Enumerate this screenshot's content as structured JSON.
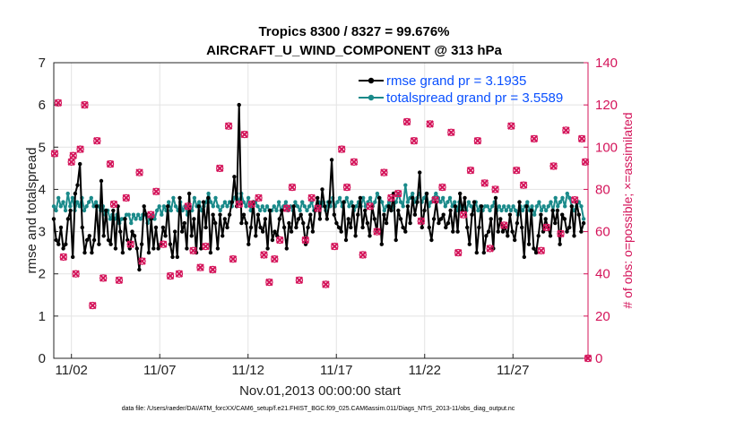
{
  "chart_data": {
    "type": "line",
    "title": "Tropics 8300 / 8327 = 99.676%",
    "subtitle": "AIRCRAFT_U_WIND_COMPONENT @ 313 hPa",
    "xlabel": "Nov.01,2013 00:00:00 start",
    "ylabel": "rmse and totalspread",
    "ylabel_right": "# of obs: o=possible; ×=assimilated",
    "footnote": "data file: /Users/raeder/DAI/ATM_forcXX/CAM6_setup/f.e21.FHIST_BGC.f09_025.CAM6assim.011/Diags_NTrS_2013-11/obs_diag_output.nc",
    "xlim": [
      0,
      30.25
    ],
    "ylim": [
      0,
      7
    ],
    "ylim_right": [
      0,
      140
    ],
    "yticks": [
      "0",
      "1",
      "2",
      "3",
      "4",
      "5",
      "6",
      "7"
    ],
    "yticks_right": [
      "0",
      "20",
      "40",
      "60",
      "80",
      "100",
      "120",
      "140"
    ],
    "xticks": [
      {
        "x": 1,
        "label": "11/02"
      },
      {
        "x": 6,
        "label": "11/07"
      },
      {
        "x": 11,
        "label": "11/12"
      },
      {
        "x": 16,
        "label": "11/17"
      },
      {
        "x": 21,
        "label": "11/22"
      },
      {
        "x": 26,
        "label": "11/27"
      }
    ],
    "grid": true,
    "legend_position": "top-right",
    "series": [
      {
        "name": "rmse grand pr = 3.1935",
        "color": "#000000",
        "axis": "left",
        "values": [
          3.3,
          2.8,
          2.7,
          3.1,
          2.6,
          2.7,
          3.3,
          3.5,
          2.4,
          3.9,
          4.1,
          4.6,
          3.1,
          2.5,
          2.8,
          2.9,
          2.5,
          2.8,
          3.6,
          2.7,
          4.2,
          2.9,
          3.5,
          2.8,
          2.7,
          3.5,
          2.6,
          3.6,
          3.0,
          2.5,
          3.3,
          2.8,
          2.6,
          3.0,
          2.9,
          2.6,
          2.1,
          2.7,
          3.6,
          3.4,
          2.5,
          3.3,
          2.6,
          3.1,
          2.6,
          2.7,
          3.1,
          2.9,
          3.6,
          2.7,
          2.4,
          3.0,
          2.4,
          3.8,
          3.0,
          3.2,
          2.6,
          3.9,
          2.9,
          3.3,
          2.5,
          3.6,
          2.6,
          3.7,
          3.1,
          3.8,
          2.5,
          3.4,
          3.2,
          2.6,
          3.4,
          2.9,
          3.3,
          3.1,
          3.4,
          3.7,
          4.3,
          3.6,
          6.0,
          3.2,
          3.4,
          3.2,
          2.7,
          3.1,
          3.7,
          2.9,
          3.4,
          3.1,
          3.0,
          3.3,
          2.6,
          3.5,
          2.8,
          3.0,
          2.9,
          3.3,
          3.5,
          3.1,
          2.6,
          3.2,
          3.0,
          3.6,
          3.1,
          3.3,
          3.4,
          3.2,
          2.7,
          3.1,
          3.4,
          3.0,
          3.5,
          3.8,
          3.3,
          4.0,
          3.6,
          3.3,
          3.7,
          4.7,
          3.4,
          3.2,
          3.1,
          3.0,
          3.7,
          2.8,
          3.3,
          3.1,
          3.6,
          2.9,
          3.4,
          3.8,
          3.1,
          3.5,
          3.2,
          2.9,
          3.6,
          3.3,
          3.0,
          3.8,
          2.7,
          3.4,
          3.2,
          3.6,
          3.5,
          3.9,
          2.8,
          3.5,
          3.3,
          3.1,
          3.0,
          3.6,
          3.2,
          3.8,
          3.4,
          3.7,
          4.4,
          3.1,
          3.5,
          3.9,
          3.1,
          2.8,
          3.3,
          3.7,
          3.2,
          3.3,
          3.4,
          3.1,
          3.2,
          3.5,
          3.0,
          3.6,
          3.0,
          3.9,
          3.5,
          3.8,
          3.1,
          2.7,
          3.4,
          3.7,
          2.5,
          3.1,
          3.6,
          2.5,
          2.9,
          3.0,
          3.3,
          2.6,
          3.8,
          3.0,
          3.3,
          3.0,
          3.1,
          2.9,
          3.4,
          3.0,
          2.8,
          3.2,
          3.7,
          3.1,
          2.4,
          3.6,
          2.7,
          3.5,
          2.6,
          2.5,
          2.9,
          3.4,
          3.0,
          3.3,
          3.1,
          2.9,
          3.5,
          3.2,
          3.5,
          2.7,
          3.4,
          3.3,
          3.0,
          3.1,
          3.6,
          2.9,
          3.7,
          3.4,
          3.0,
          3.2
        ]
      },
      {
        "name": "totalspread grand pr = 3.5589",
        "color": "#1a8a8a",
        "axis": "left",
        "values": [
          3.6,
          3.5,
          3.8,
          3.6,
          3.7,
          3.5,
          3.9,
          3.6,
          3.8,
          3.5,
          3.7,
          3.6,
          3.8,
          3.5,
          3.6,
          3.7,
          3.8,
          3.6,
          3.7,
          3.6,
          3.5,
          3.6,
          3.4,
          3.5,
          3.3,
          3.4,
          3.3,
          3.4,
          3.2,
          3.3,
          3.3,
          3.4,
          3.4,
          3.2,
          3.4,
          3.3,
          3.4,
          3.3,
          3.4,
          3.4,
          3.2,
          3.3,
          3.4,
          3.3,
          3.5,
          3.6,
          3.4,
          3.6,
          3.5,
          3.7,
          3.5,
          3.8,
          3.6,
          3.5,
          3.7,
          3.5,
          3.6,
          3.4,
          3.6,
          3.5,
          3.8,
          3.6,
          3.7,
          3.5,
          3.6,
          3.7,
          3.9,
          3.7,
          3.6,
          3.8,
          3.6,
          3.5,
          3.6,
          3.7,
          3.6,
          3.7,
          3.6,
          3.8,
          3.9,
          3.7,
          3.9,
          3.7,
          3.6,
          3.8,
          3.5,
          3.6,
          3.7,
          3.6,
          3.5,
          3.6,
          3.5,
          3.6,
          3.5,
          3.5,
          3.6,
          3.5,
          3.7,
          3.5,
          3.6,
          3.7,
          3.5,
          3.6,
          3.5,
          3.7,
          3.6,
          3.5,
          3.7,
          3.6,
          3.5,
          3.6,
          3.7,
          3.5,
          3.6,
          3.7,
          3.6,
          3.7,
          3.5,
          3.7,
          3.6,
          3.8,
          3.6,
          3.7,
          3.8,
          3.6,
          3.7,
          3.8,
          3.6,
          3.7,
          3.5,
          3.6,
          3.7,
          3.6,
          3.8,
          3.6,
          3.7,
          3.8,
          3.6,
          3.7,
          3.9,
          3.8,
          3.7,
          3.5,
          3.6,
          3.7,
          3.5,
          3.6,
          3.7,
          3.9,
          3.7,
          3.6,
          4.1,
          3.7,
          3.8,
          3.9,
          3.7,
          3.8,
          3.9,
          3.7,
          3.8,
          3.9,
          3.6,
          3.7,
          3.8,
          3.9,
          3.8,
          3.7,
          3.8,
          3.6,
          3.7,
          3.8,
          3.6,
          3.7,
          3.5,
          3.7,
          3.5,
          3.6,
          3.5,
          3.7,
          3.6,
          3.5,
          3.7,
          3.5,
          3.6,
          3.5,
          3.6,
          3.6,
          3.5,
          3.6,
          3.7,
          3.5,
          3.6,
          3.5,
          3.6,
          3.5,
          3.6,
          3.5,
          3.6,
          3.5,
          3.4,
          3.6,
          3.5,
          3.6,
          3.7,
          3.5,
          3.6,
          3.4,
          3.6,
          3.7,
          3.5,
          3.6,
          3.5,
          3.6,
          3.7,
          3.5,
          3.8,
          3.6,
          3.7,
          3.8,
          3.6,
          3.9,
          3.8,
          3.6,
          3.5,
          3.6,
          3.7,
          3.6,
          3.3
        ]
      },
      {
        "name": "obs possible",
        "color": "#d4145a",
        "axis": "right",
        "points": [
          [
            0.05,
            97
          ],
          [
            0.25,
            121
          ],
          [
            0.55,
            48
          ],
          [
            1.0,
            93
          ],
          [
            1.1,
            96
          ],
          [
            1.25,
            40
          ],
          [
            1.5,
            99
          ],
          [
            1.75,
            120
          ],
          [
            2.2,
            25
          ],
          [
            2.45,
            103
          ],
          [
            2.8,
            38
          ],
          [
            3.2,
            92
          ],
          [
            3.4,
            73
          ],
          [
            3.7,
            37
          ],
          [
            4.1,
            76
          ],
          [
            4.35,
            54
          ],
          [
            4.85,
            88
          ],
          [
            5.0,
            46
          ],
          [
            5.5,
            68
          ],
          [
            5.8,
            79
          ],
          [
            6.2,
            54
          ],
          [
            6.6,
            39
          ],
          [
            7.1,
            40
          ],
          [
            7.6,
            72
          ],
          [
            7.9,
            51
          ],
          [
            8.3,
            43
          ],
          [
            8.6,
            53
          ],
          [
            9.0,
            42
          ],
          [
            9.4,
            90
          ],
          [
            9.9,
            110
          ],
          [
            10.15,
            47
          ],
          [
            10.5,
            73
          ],
          [
            10.8,
            106
          ],
          [
            11.2,
            73
          ],
          [
            11.6,
            76
          ],
          [
            11.9,
            49
          ],
          [
            12.2,
            36
          ],
          [
            12.5,
            47
          ],
          [
            12.8,
            56
          ],
          [
            13.2,
            71
          ],
          [
            13.5,
            81
          ],
          [
            13.9,
            37
          ],
          [
            14.25,
            56
          ],
          [
            14.6,
            76
          ],
          [
            14.95,
            71
          ],
          [
            15.4,
            35
          ],
          [
            15.9,
            53
          ],
          [
            16.3,
            99
          ],
          [
            16.6,
            81
          ],
          [
            17.0,
            93
          ],
          [
            17.5,
            49
          ],
          [
            17.9,
            72
          ],
          [
            18.3,
            60
          ],
          [
            18.7,
            88
          ],
          [
            19.1,
            76
          ],
          [
            19.5,
            78
          ],
          [
            20.0,
            112
          ],
          [
            20.4,
            103
          ],
          [
            20.8,
            65
          ],
          [
            21.3,
            111
          ],
          [
            21.6,
            75
          ],
          [
            22.0,
            81
          ],
          [
            22.5,
            107
          ],
          [
            22.9,
            50
          ],
          [
            23.2,
            68
          ],
          [
            23.6,
            89
          ],
          [
            24.0,
            103
          ],
          [
            24.4,
            83
          ],
          [
            24.7,
            52
          ],
          [
            25.0,
            80
          ],
          [
            25.5,
            63
          ],
          [
            25.9,
            110
          ],
          [
            26.2,
            89
          ],
          [
            26.6,
            82
          ],
          [
            27.2,
            104
          ],
          [
            27.6,
            51
          ],
          [
            27.9,
            62
          ],
          [
            28.3,
            91
          ],
          [
            28.7,
            59
          ],
          [
            29.0,
            108
          ],
          [
            29.5,
            75
          ],
          [
            29.9,
            104
          ],
          [
            30.1,
            93
          ],
          [
            30.25,
            0
          ]
        ]
      }
    ]
  },
  "legend": [
    {
      "label": "rmse grand pr = 3.1935",
      "color": "#000000"
    },
    {
      "label": "totalspread grand pr = 3.5589",
      "color": "#1a8a8a"
    }
  ]
}
